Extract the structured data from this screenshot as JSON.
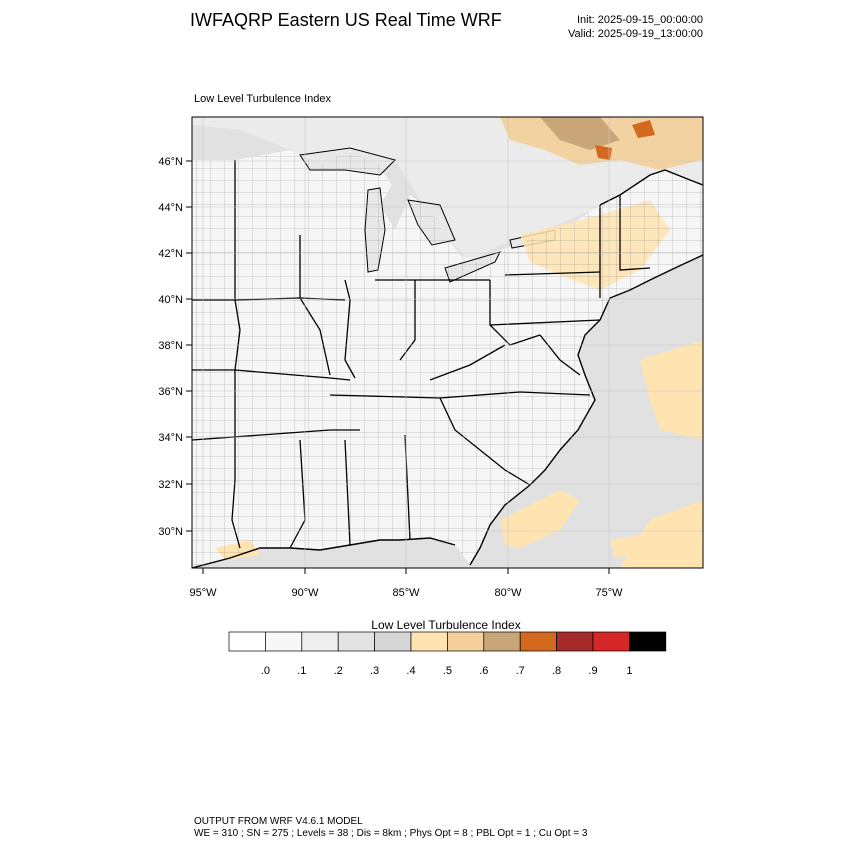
{
  "header": {
    "title": "IWFAQRP Eastern US Real Time WRF",
    "init": "Init: 2025-09-15_00:00:00",
    "valid": "Valid: 2025-09-19_13:00:00"
  },
  "panel": {
    "label": "Low Level Turbulence Index",
    "lat_labels": [
      "46°N",
      "44°N",
      "42°N",
      "40°N",
      "38°N",
      "36°N",
      "34°N",
      "32°N",
      "30°N"
    ],
    "lon_labels": [
      "95°W",
      "90°W",
      "85°W",
      "80°W",
      "75°W"
    ]
  },
  "colorbar": {
    "title": "Low Level Turbulence Index",
    "colors": [
      "#ffffff",
      "#f7f7f7",
      "#eeeeee",
      "#e3e3e3",
      "#d6d6d6",
      "#ffe3b0",
      "#f4cf9a",
      "#c9a57a",
      "#d2691e",
      "#a52a2a",
      "#d62728",
      "#000000"
    ],
    "labels": [
      ".0",
      ".1",
      ".2",
      ".3",
      ".4",
      ".5",
      ".6",
      ".7",
      ".8",
      ".9",
      "1"
    ]
  },
  "footer": {
    "line1": "OUTPUT FROM WRF V4.6.1 MODEL",
    "line2": "WE = 310 ; SN = 275 ; Levels = 38 ; Dis = 8km ; Phys Opt = 8 ; PBL Opt = 1 ; Cu Opt = 3"
  }
}
